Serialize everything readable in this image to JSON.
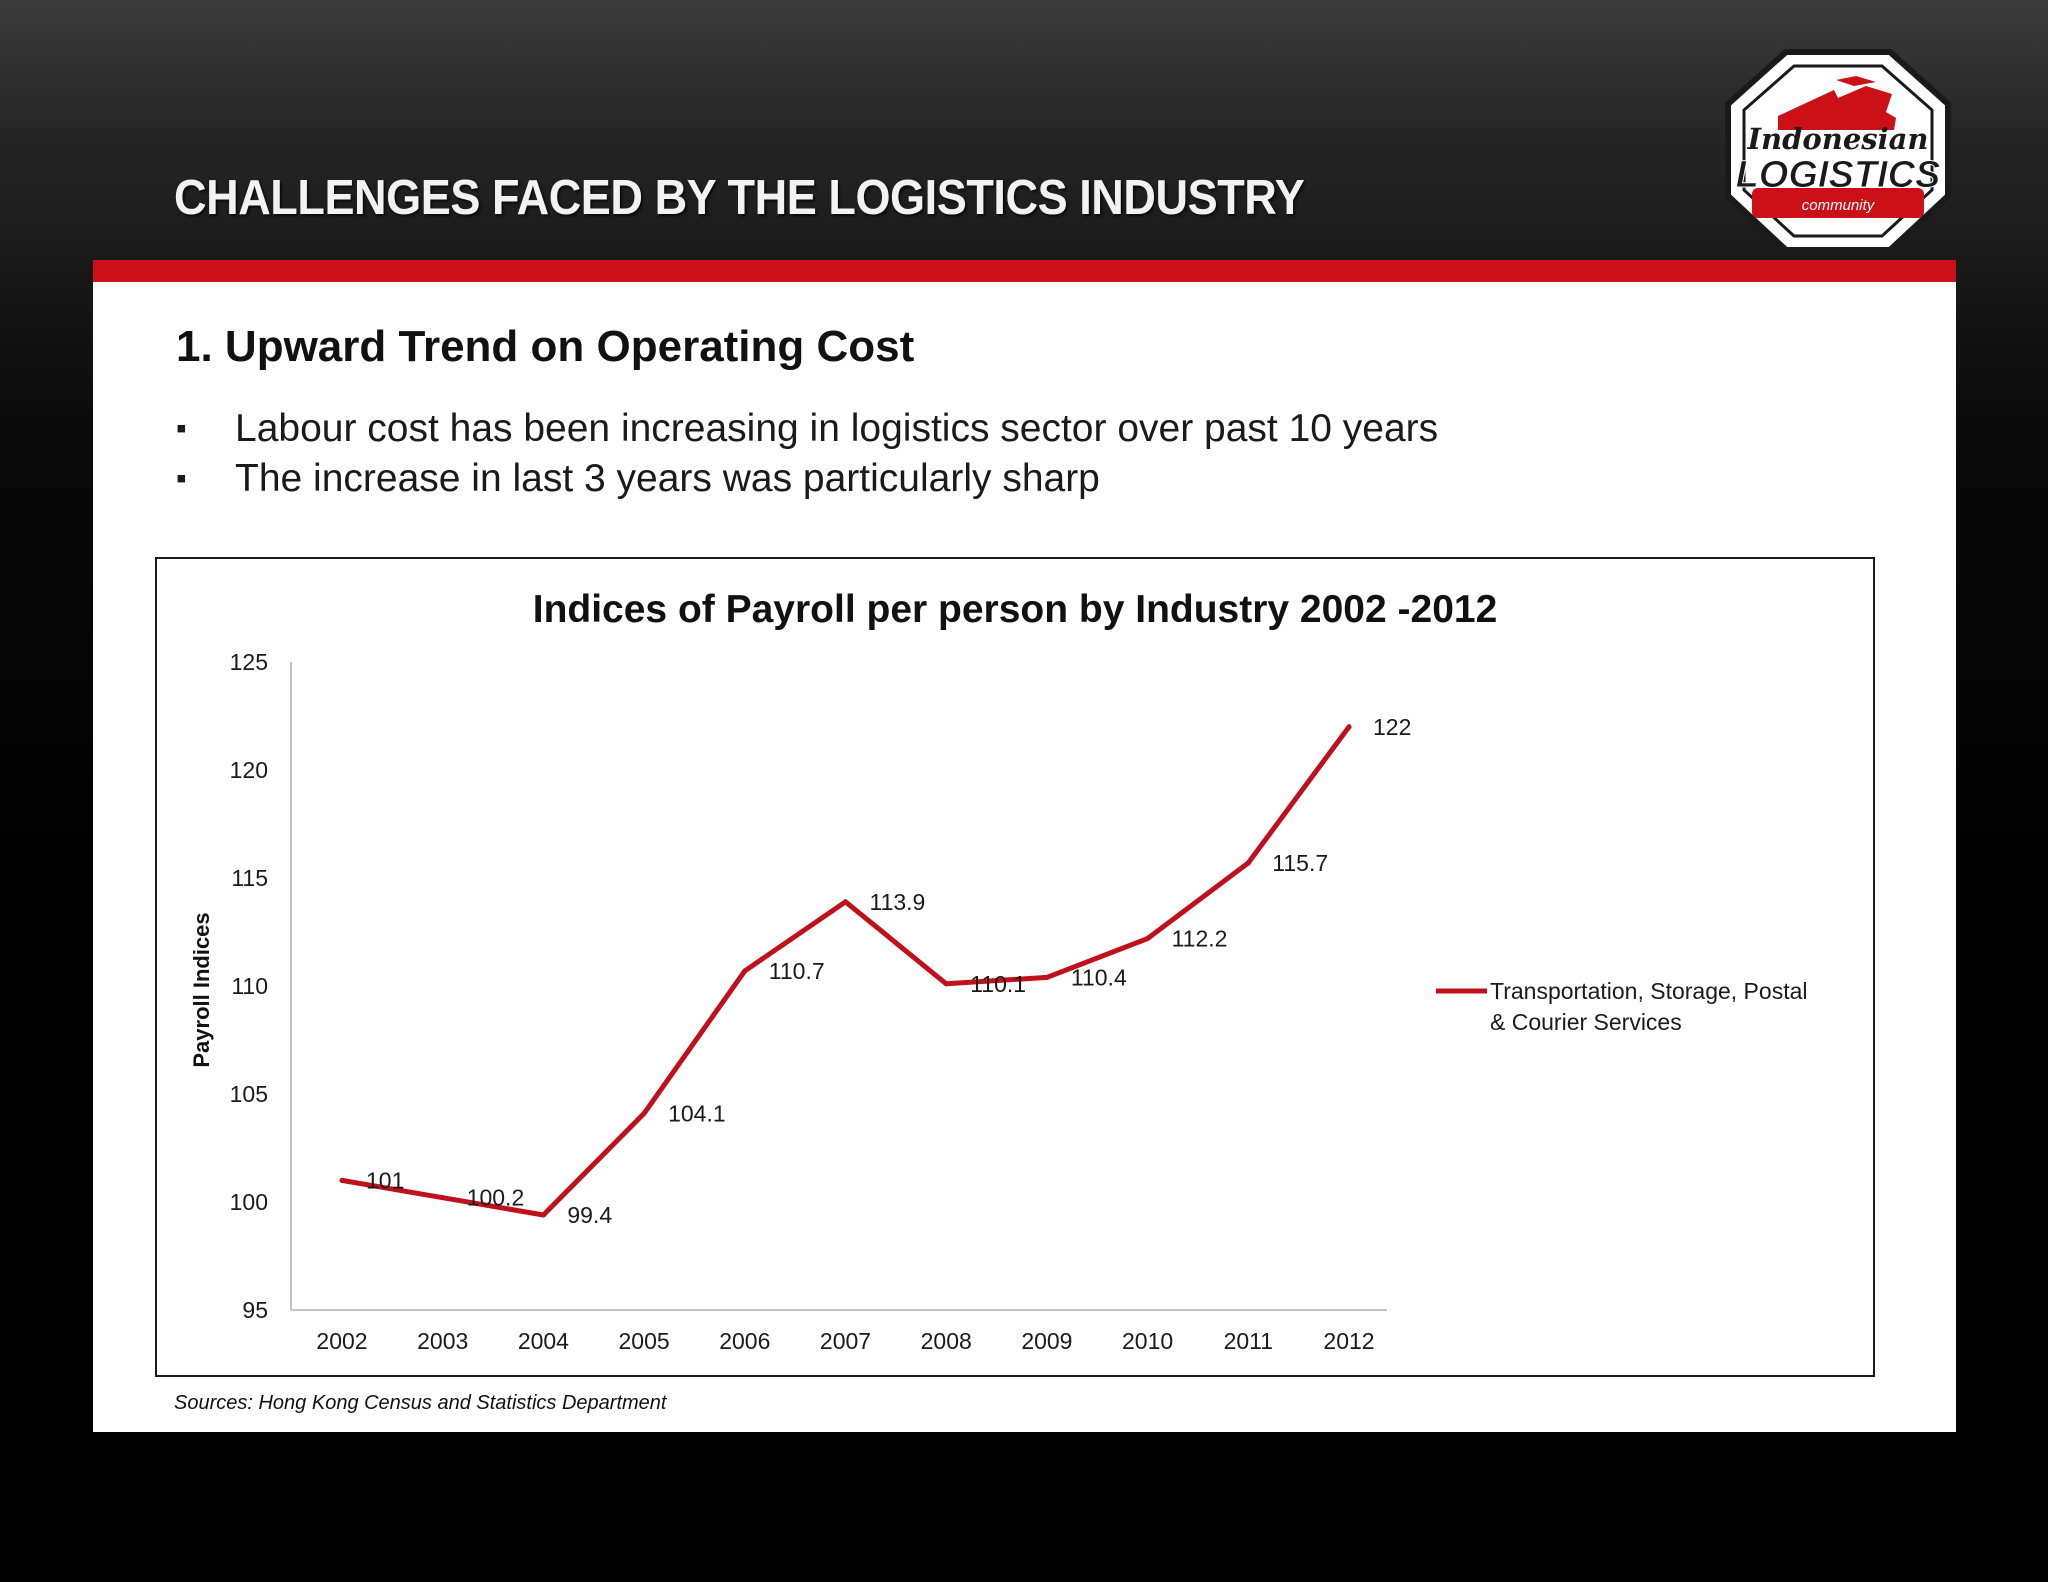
{
  "header": {
    "title": "CHALLENGES FACED BY THE LOGISTICS INDUSTRY",
    "logo": {
      "line1": "Indonesian",
      "line2": "LOGISTICS",
      "line3": "community"
    }
  },
  "content": {
    "heading": "1. Upward Trend on Operating Cost",
    "bullet_marker": "▪",
    "bullets": [
      "Labour cost has been increasing in logistics sector over past 10 years",
      "The increase in last 3 years was particularly sharp"
    ],
    "source": "Sources: Hong Kong Census and Statistics Department"
  },
  "colors": {
    "accent": "#cc1018",
    "line": "#c0101c",
    "text": "#1a1a1a"
  },
  "chart_data": {
    "type": "line",
    "title": "Indices of Payroll per person by Industry 2002 -2012",
    "xlabel": "",
    "ylabel": "Payroll Indices",
    "categories": [
      "2002",
      "2003",
      "2004",
      "2005",
      "2006",
      "2007",
      "2008",
      "2009",
      "2010",
      "2011",
      "2012"
    ],
    "series": [
      {
        "name": "Transportation, Storage, Postal & Courier Services",
        "legend_lines": [
          "Transportation, Storage, Postal",
          "& Courier Services"
        ],
        "values": [
          101,
          100.2,
          99.4,
          104.1,
          110.7,
          113.9,
          110.1,
          110.4,
          112.2,
          115.7,
          122
        ],
        "labels": [
          "101",
          "100.2",
          "99.4",
          "104.1",
          "110.7",
          "113.9",
          "110.1",
          "110.4",
          "112.2",
          "115.7",
          "122"
        ],
        "color": "#c0101c"
      }
    ],
    "ylim": [
      95,
      125
    ],
    "yticks": [
      95,
      100,
      105,
      110,
      115,
      120,
      125
    ],
    "grid": false,
    "legend": "right"
  }
}
